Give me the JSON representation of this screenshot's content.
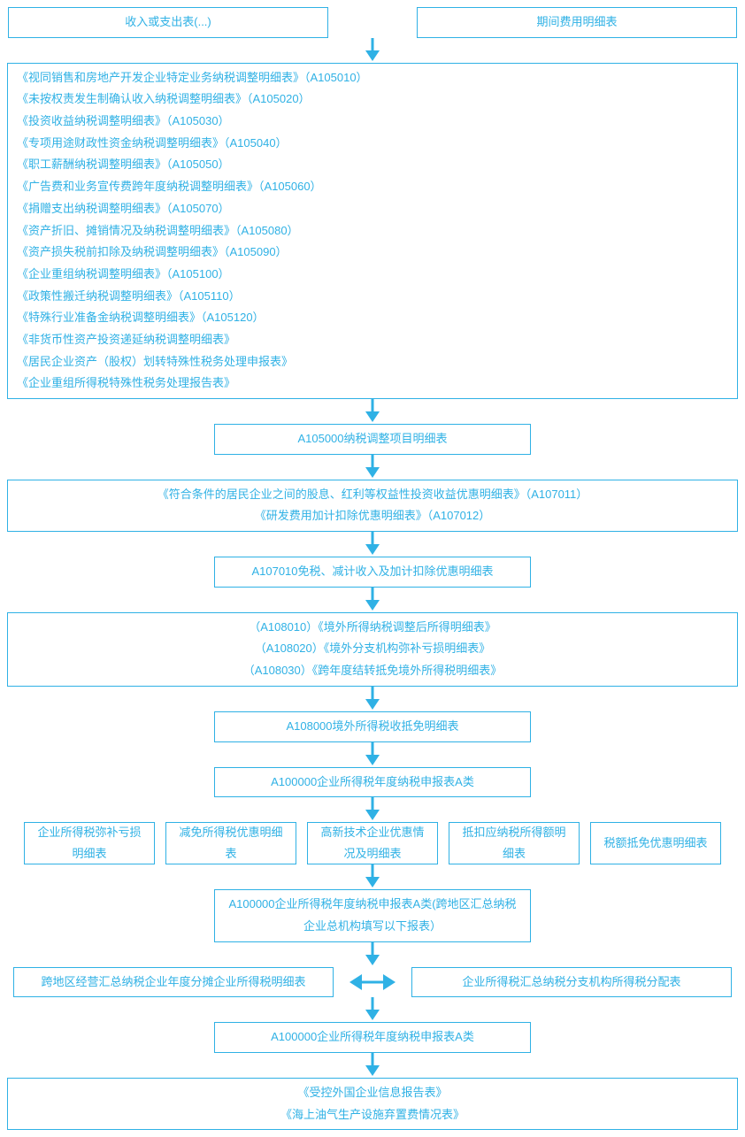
{
  "colors": {
    "border": "#2fb1e5",
    "text": "#2fb1e5",
    "arrow": "#2fb1e5",
    "background": "#ffffff"
  },
  "typography": {
    "font_family": "Microsoft YaHei",
    "font_size_pt": 10
  },
  "flowchart": {
    "type": "flowchart",
    "top_left": "收入或支出表(...)",
    "top_right": "期间费用明细表",
    "big_list": [
      "《视同销售和房地产开发企业特定业务纳税调整明细表》（A105010）",
      "《未按权责发生制确认收入纳税调整明细表》（A105020）",
      "《投资收益纳税调整明细表》（A105030）",
      "《专项用途财政性资金纳税调整明细表》（A105040）",
      "《职工薪酬纳税调整明细表》（A105050）",
      "《广告费和业务宣传费跨年度纳税调整明细表》（A105060）",
      "《捐赠支出纳税调整明细表》（A105070）",
      "《资产折旧、摊销情况及纳税调整明细表》（A105080）",
      "《资产损失税前扣除及纳税调整明细表》（A105090）",
      "《企业重组纳税调整明细表》（A105100）",
      "《政策性搬迁纳税调整明细表》（A105110）",
      "《特殊行业准备金纳税调整明细表》（A105120）",
      "《非货币性资产投资递延纳税调整明细表》",
      "《居民企业资产（股权）划转特殊性税务处理申报表》",
      "《企业重组所得税特殊性税务处理报告表》"
    ],
    "a105000": "A105000纳税调整项目明细表",
    "block_a107": {
      "line1": "《符合条件的居民企业之间的股息、红利等权益性投资收益优惠明细表》（A107011）",
      "line2": "《研发费用加计扣除优惠明细表》（A107012）"
    },
    "a107010": "A107010免税、减计收入及加计扣除优惠明细表",
    "block_a108": {
      "line1": "（A108010）《境外所得纳税调整后所得明细表》",
      "line2": "（A108020）《境外分支机构弥补亏损明细表》",
      "line3": "（A108030）《跨年度结转抵免境外所得税明细表》"
    },
    "a108000": "A108000境外所得税收抵免明细表",
    "a100000_1": "A100000企业所得税年度纳税申报表A类",
    "five": [
      "企业所得税弥补亏损明细表",
      "减免所得税优惠明细表",
      "高新技术企业优惠情况及明细表",
      "抵扣应纳税所得额明细表",
      "税额抵免优惠明细表"
    ],
    "a100000_2": "A100000企业所得税年度纳税申报表A类(跨地区汇总纳税企业总机构填写以下报表）",
    "bottom_pair_left": "跨地区经营汇总纳税企业年度分摊企业所得税明细表",
    "bottom_pair_right": "企业所得税汇总纳税分支机构所得税分配表",
    "a100000_3": "A100000企业所得税年度纳税申报表A类",
    "final": {
      "line1": "《受控外国企业信息报告表》",
      "line2": "《海上油气生产设施弃置费情况表》"
    }
  }
}
